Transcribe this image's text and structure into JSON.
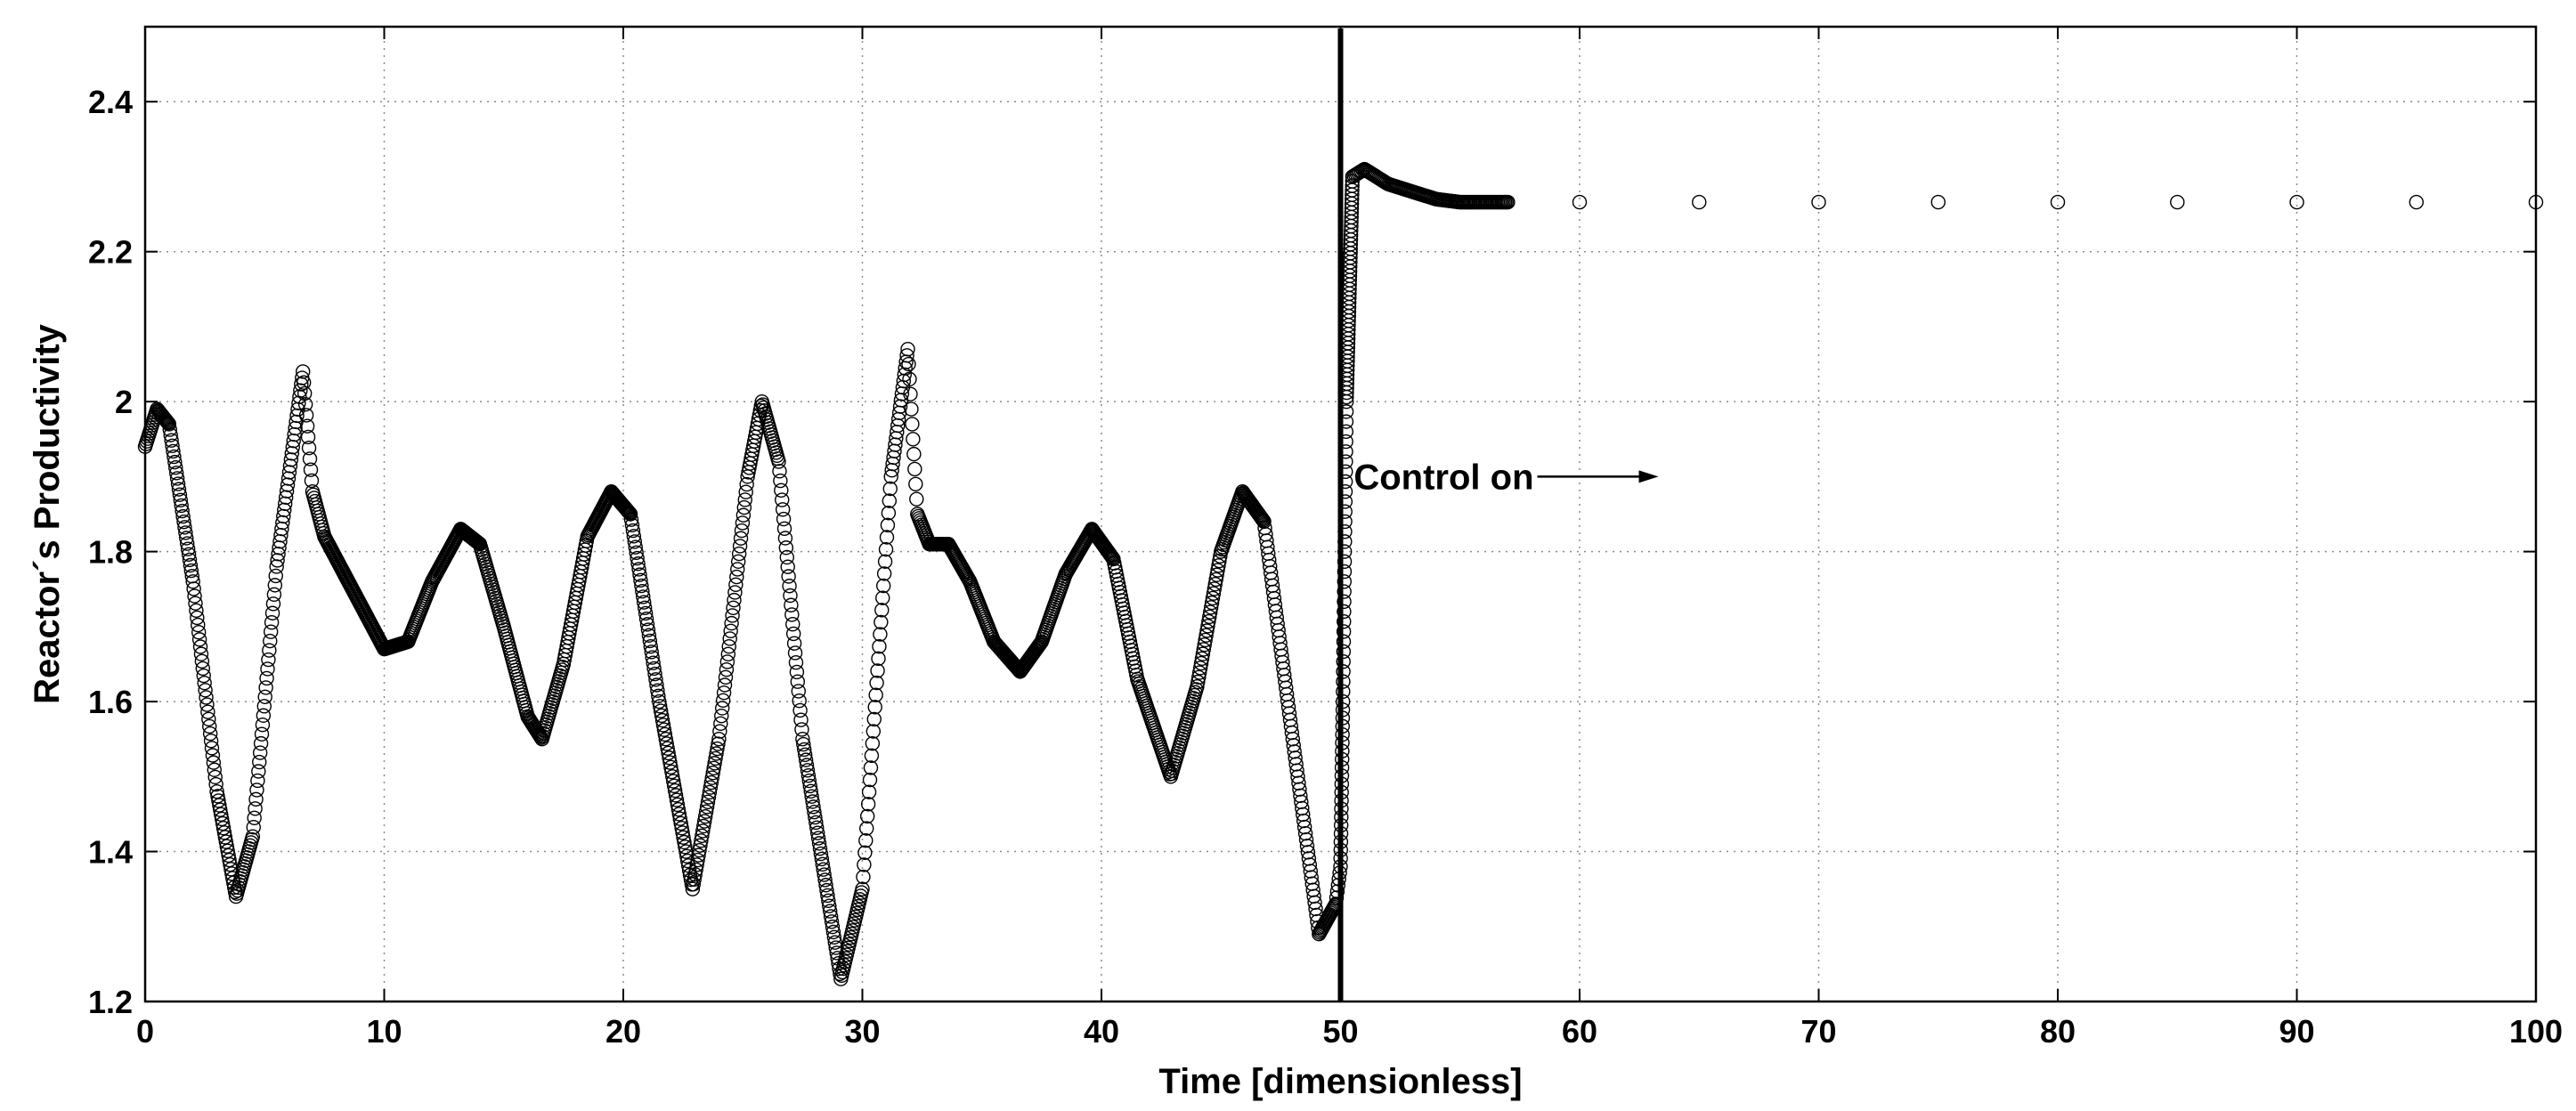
{
  "chart_data": {
    "type": "scatter",
    "title": "",
    "xlabel": "Time [dimensionless]",
    "ylabel": "Reactor´s Productivity",
    "xlim": [
      0,
      100
    ],
    "ylim": [
      1.2,
      2.5
    ],
    "x_ticks": [
      "0",
      "10",
      "20",
      "30",
      "40",
      "50",
      "60",
      "70",
      "80",
      "90",
      "100"
    ],
    "y_ticks": [
      "1.2",
      "1.4",
      "1.6",
      "1.8",
      "2",
      "2.2",
      "2.4"
    ],
    "grid": true,
    "marker": "open-circle",
    "control_switch_time": 50,
    "annotation": {
      "text": "Control on",
      "x": 51,
      "y": 1.9
    },
    "series": [
      {
        "points": [
          [
            0,
            1.94
          ],
          [
            0.5,
            1.99
          ],
          [
            1,
            1.97
          ],
          [
            2,
            1.76
          ],
          [
            3,
            1.48
          ],
          [
            3.8,
            1.34
          ],
          [
            4.5,
            1.42
          ],
          [
            5.5,
            1.78
          ],
          [
            6.6,
            2.04
          ],
          [
            7,
            1.88
          ],
          [
            7.5,
            1.82
          ],
          [
            8.5,
            1.76
          ],
          [
            10,
            1.67
          ],
          [
            11,
            1.68
          ],
          [
            12,
            1.76
          ],
          [
            13.2,
            1.83
          ],
          [
            14,
            1.81
          ],
          [
            15,
            1.7
          ],
          [
            16,
            1.58
          ],
          [
            16.6,
            1.55
          ],
          [
            17.5,
            1.65
          ],
          [
            18.5,
            1.82
          ],
          [
            19.5,
            1.88
          ],
          [
            20.3,
            1.85
          ],
          [
            21.5,
            1.6
          ],
          [
            22.9,
            1.35
          ],
          [
            24,
            1.55
          ],
          [
            25.2,
            1.9
          ],
          [
            25.8,
            2.0
          ],
          [
            26.5,
            1.92
          ],
          [
            27.5,
            1.55
          ],
          [
            29.1,
            1.23
          ],
          [
            30,
            1.35
          ],
          [
            31.2,
            1.9
          ],
          [
            31.9,
            2.07
          ],
          [
            32.3,
            1.85
          ],
          [
            32.8,
            1.81
          ],
          [
            33.6,
            1.81
          ],
          [
            34.5,
            1.76
          ],
          [
            35.5,
            1.68
          ],
          [
            36.6,
            1.64
          ],
          [
            37.5,
            1.68
          ],
          [
            38.5,
            1.77
          ],
          [
            39.6,
            1.83
          ],
          [
            40.5,
            1.79
          ],
          [
            41.5,
            1.63
          ],
          [
            42.9,
            1.5
          ],
          [
            44,
            1.62
          ],
          [
            45,
            1.8
          ],
          [
            45.9,
            1.88
          ],
          [
            46.8,
            1.84
          ],
          [
            48,
            1.55
          ],
          [
            49.1,
            1.29
          ],
          [
            49.8,
            1.33
          ],
          [
            50,
            1.38
          ],
          [
            50.1,
            1.6
          ],
          [
            50.25,
            2.0
          ],
          [
            50.5,
            2.3
          ],
          [
            51,
            2.31
          ],
          [
            52,
            2.29
          ],
          [
            53,
            2.28
          ],
          [
            54,
            2.27
          ],
          [
            55,
            2.266
          ],
          [
            57,
            2.266
          ],
          [
            60,
            2.266
          ],
          [
            65,
            2.266
          ],
          [
            70,
            2.266
          ],
          [
            75,
            2.266
          ],
          [
            80,
            2.266
          ],
          [
            85,
            2.266
          ],
          [
            90,
            2.266
          ],
          [
            95,
            2.266
          ],
          [
            100,
            2.266
          ]
        ]
      }
    ]
  }
}
